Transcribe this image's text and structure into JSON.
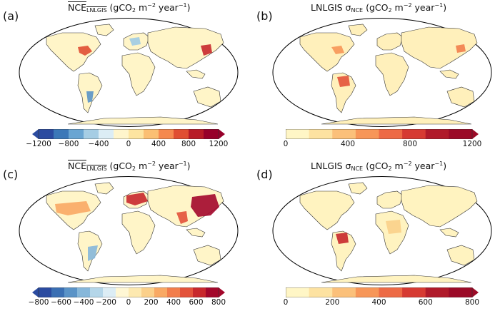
{
  "panels": [
    {
      "id": "a",
      "label": "(a)",
      "title_main": "NCE",
      "title_sub": "LNLGIS",
      "title_overline": true,
      "title_sigma": "",
      "title_unit": "(gCO",
      "title_unit2": " m",
      "title_exp1": "−2",
      "title_unit3": " year",
      "title_exp2": "−1",
      "colorbar": {
        "type": "diverging",
        "extend": "both",
        "colors": [
          "#2b4ba0",
          "#3c78b8",
          "#6aa5d2",
          "#a6cde4",
          "#dcedf5",
          "#fff5cc",
          "#fde4a0",
          "#fbbf73",
          "#f5894f",
          "#e04e32",
          "#b81b27",
          "#97002a"
        ],
        "ticks": [
          "−1200",
          "−800",
          "−400",
          "0",
          "400",
          "800",
          "1200"
        ]
      }
    },
    {
      "id": "b",
      "label": "(b)",
      "title_main": "LNLGIS σ",
      "title_sub": "NCE",
      "title_overline": false,
      "title_unit": "(gCO",
      "title_unit2": " m",
      "title_exp1": "−2",
      "title_unit3": " year",
      "title_exp2": "−1",
      "colorbar": {
        "type": "sequential",
        "extend": "max",
        "colors": [
          "#fff6c6",
          "#fde2a1",
          "#fbc07a",
          "#f79658",
          "#ed6a45",
          "#d63a32",
          "#b01a2a",
          "#9b0a27"
        ],
        "ticks": [
          "0",
          "400",
          "800",
          "1200"
        ]
      }
    },
    {
      "id": "c",
      "label": "(c)",
      "title_main": "NCE",
      "title_sub": "LNLGIS",
      "title_overline": true,
      "title_unit": "(gCO",
      "title_unit2": " m",
      "title_exp1": "−2",
      "title_unit3": " year",
      "title_exp2": "−1",
      "colorbar": {
        "type": "diverging",
        "extend": "both",
        "colors": [
          "#2b4ba0",
          "#3a6fb3",
          "#5a93c7",
          "#86b7da",
          "#b4d6e9",
          "#dcedf5",
          "#fff7d4",
          "#fde9b0",
          "#fbd08a",
          "#f9a964",
          "#f27e4c",
          "#e3523a",
          "#c8282c",
          "#a3072b"
        ],
        "ticks": [
          "−800",
          "−600",
          "−400",
          "−200",
          "0",
          "200",
          "400",
          "600",
          "800"
        ]
      }
    },
    {
      "id": "d",
      "label": "(d)",
      "title_main": "LNLGIS σ",
      "title_sub": "NCE",
      "title_overline": false,
      "title_unit": "(gCO",
      "title_unit2": " m",
      "title_exp1": "−2",
      "title_unit3": " year",
      "title_exp2": "−1",
      "colorbar": {
        "type": "sequential",
        "extend": "max",
        "colors": [
          "#fff6c6",
          "#fde2a1",
          "#fbc07a",
          "#f79658",
          "#ed6a45",
          "#d63a32",
          "#b01a2a",
          "#9b0a27"
        ],
        "ticks": [
          "0",
          "200",
          "400",
          "600",
          "800"
        ]
      }
    }
  ]
}
